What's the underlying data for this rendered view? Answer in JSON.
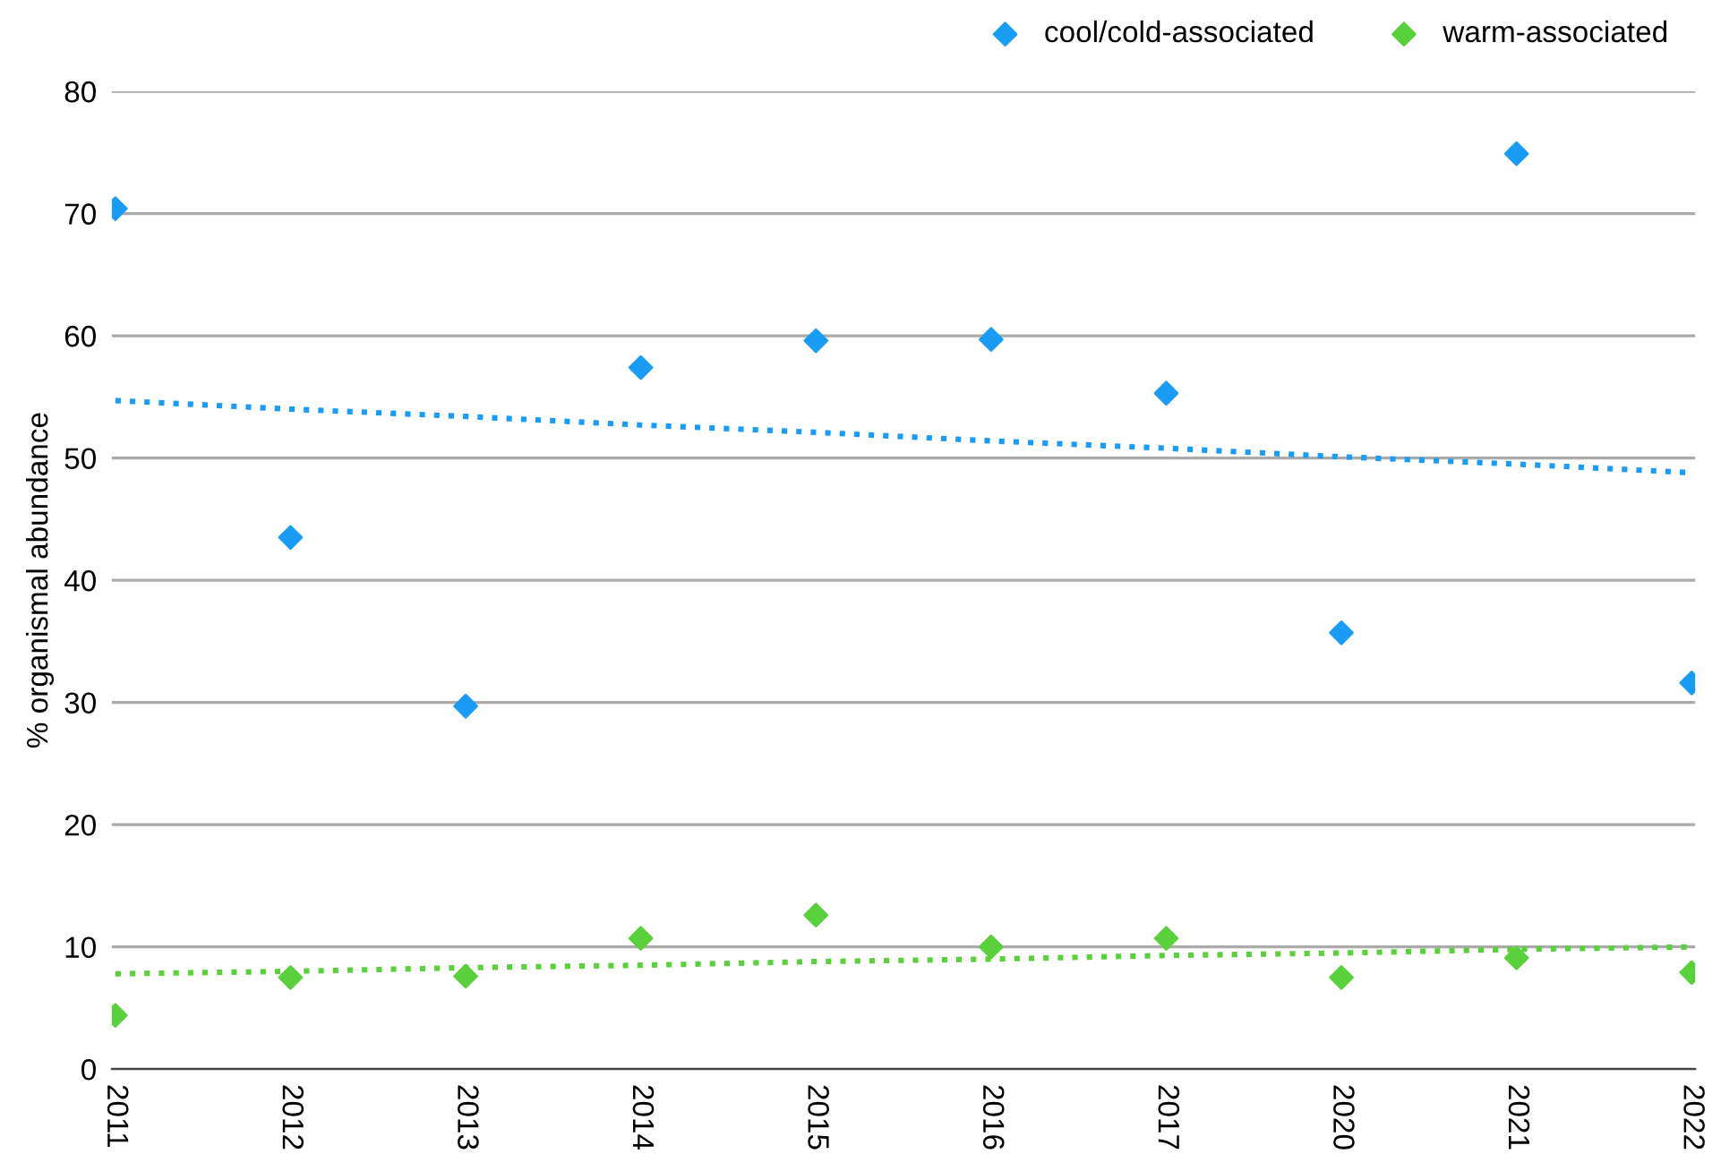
{
  "chart_data": {
    "type": "scatter",
    "ylabel": "% organismal abundance",
    "categories": [
      "2011",
      "2012",
      "2013",
      "2014",
      "2015",
      "2016",
      "2017",
      "2020",
      "2021",
      "2022"
    ],
    "series": [
      {
        "name": "cool/cold-associated",
        "color": "#1a9cf5",
        "values": [
          70.4,
          43.5,
          29.7,
          57.4,
          59.6,
          59.7,
          55.3,
          35.7,
          74.9,
          31.6
        ]
      },
      {
        "name": "warm-associated",
        "color": "#5ad03c",
        "values": [
          4.4,
          7.5,
          7.6,
          10.7,
          12.6,
          10.0,
          10.7,
          7.5,
          9.1,
          7.9
        ]
      },
      {
        "type": "line",
        "line_style": "dotted",
        "marker": "none",
        "color": "#1a9cf5",
        "values": [
          54.7,
          54.0,
          53.4,
          52.7,
          52.1,
          51.4,
          50.8,
          50.1,
          49.5,
          48.8
        ]
      },
      {
        "type": "line",
        "line_style": "dotted",
        "marker": "none",
        "color": "#5ad03c",
        "values": [
          7.8,
          8.0,
          8.3,
          8.5,
          8.8,
          9.0,
          9.3,
          9.5,
          9.8,
          10.0
        ]
      }
    ],
    "ylim": [
      0,
      80
    ],
    "yticks": [
      0,
      10,
      20,
      30,
      40,
      50,
      60,
      70,
      80
    ],
    "grid": "y",
    "legend": "top right",
    "marker": "diamond"
  }
}
